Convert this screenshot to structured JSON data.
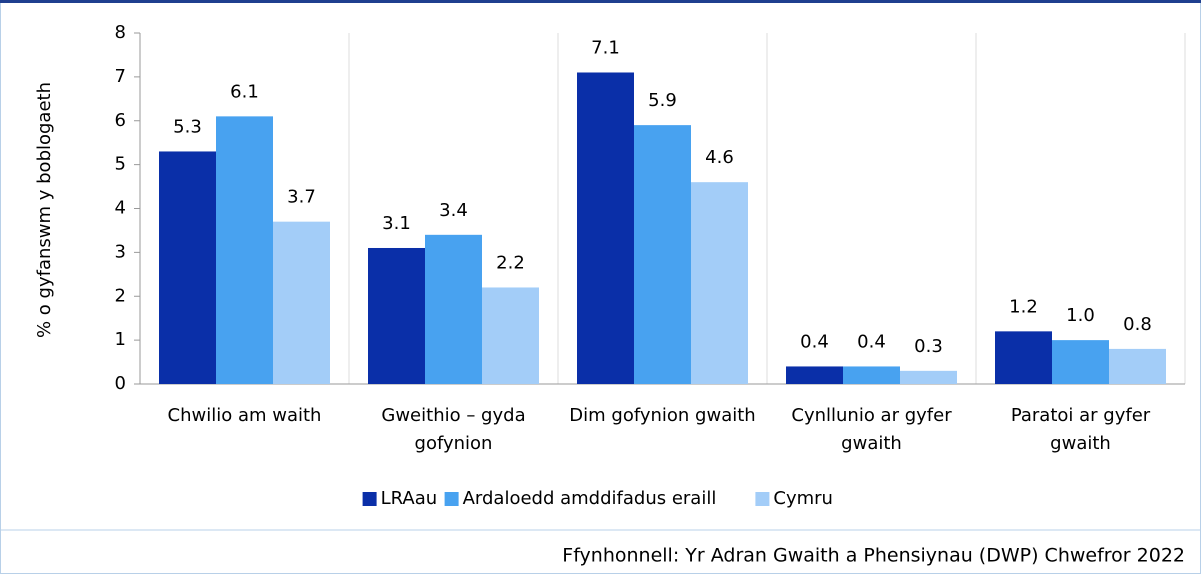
{
  "chart_data": {
    "type": "bar",
    "y_label": "% o gyfanswm y boblogaeth",
    "categories": [
      "Chwilio am waith",
      "Gweithio – gyda gofynion",
      "Dim gofynion gwaith",
      "Cynllunio ar gyfer gwaith",
      "Paratoi ar gyfer gwaith"
    ],
    "series": [
      {
        "name": "LRAau",
        "color": "#0a2fa8",
        "values": [
          5.3,
          3.1,
          7.1,
          0.4,
          1.2
        ]
      },
      {
        "name": "Ardaloedd amddifadus eraill",
        "color": "#48a2f0",
        "values": [
          6.1,
          3.4,
          5.9,
          0.4,
          1.0
        ],
        "value_labels": [
          "6.1",
          "3.4",
          "5.9",
          "0.4",
          "1.0"
        ]
      },
      {
        "name": "Cymru",
        "color": "#a3cdf8",
        "values": [
          3.7,
          2.2,
          4.6,
          0.3,
          0.8
        ]
      }
    ],
    "ylim": [
      0,
      8
    ],
    "yticks": [
      0,
      1,
      2,
      3,
      4,
      5,
      6,
      7,
      8
    ],
    "source": "Ffynhonnell: Yr Adran Gwaith a Phensiynau (DWP) Chwefror 2022"
  }
}
